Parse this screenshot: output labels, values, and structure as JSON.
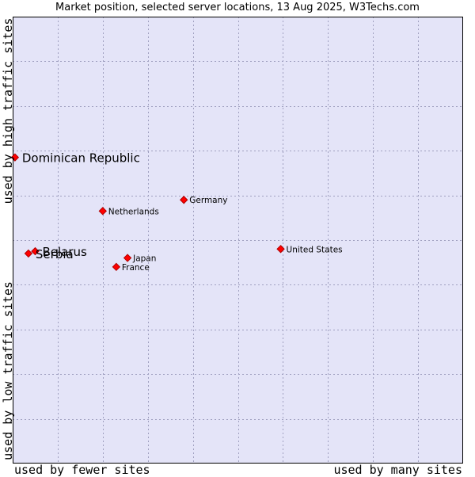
{
  "chart_data": {
    "type": "scatter",
    "title": "Market position, selected server locations, 13 Aug 2025, W3Techs.com",
    "ylabel_top": "used by high traffic sites",
    "ylabel_bottom": "used by low traffic sites",
    "xlabel_left": "used by fewer sites",
    "xlabel_right": "used by many sites",
    "xlim": [
      0,
      10
    ],
    "ylim": [
      0,
      10
    ],
    "grid": true,
    "colors": {
      "plot_background": "#e4e4f8",
      "grid": "#a0a0c0",
      "marker": "#ff0000",
      "marker_border": "#b00000"
    },
    "points": [
      {
        "name": "Dominican Republic",
        "x": 0.05,
        "y": 6.85,
        "highlight": true
      },
      {
        "name": "Germany",
        "x": 3.8,
        "y": 5.9,
        "highlight": false
      },
      {
        "name": "Netherlands",
        "x": 2.0,
        "y": 5.65,
        "highlight": false
      },
      {
        "name": "United States",
        "x": 5.95,
        "y": 4.8,
        "highlight": false
      },
      {
        "name": "Belarus",
        "x": 0.5,
        "y": 4.75,
        "highlight": true
      },
      {
        "name": "Serbia",
        "x": 0.35,
        "y": 4.7,
        "highlight": true
      },
      {
        "name": "Japan",
        "x": 2.55,
        "y": 4.6,
        "highlight": false
      },
      {
        "name": "France",
        "x": 2.3,
        "y": 4.4,
        "highlight": false
      }
    ]
  }
}
